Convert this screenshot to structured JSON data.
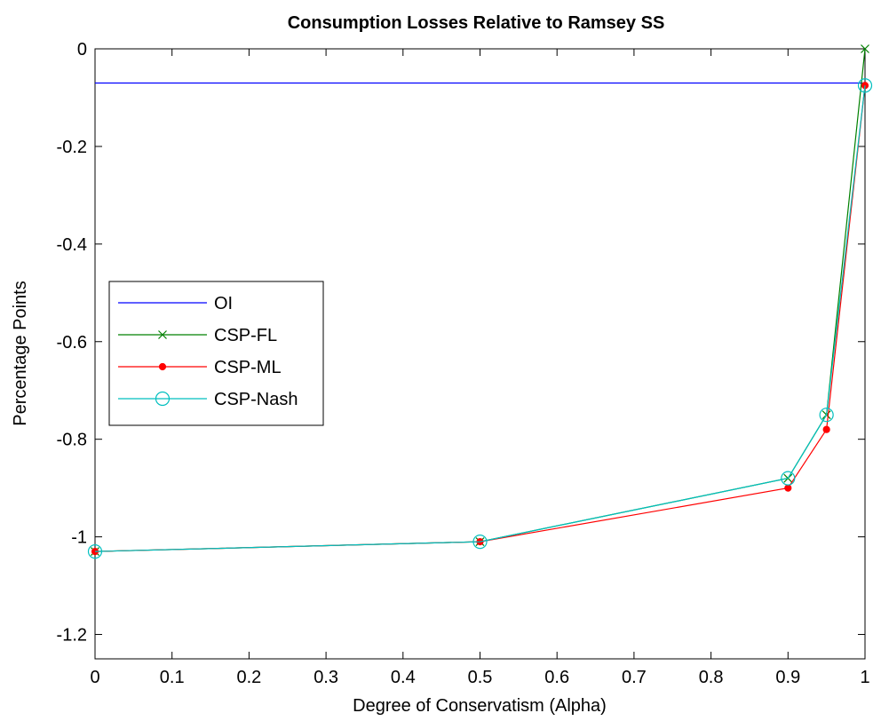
{
  "chart_data": {
    "type": "line",
    "title": "Consumption Losses Relative to Ramsey SS",
    "xlabel": "Degree of Conservatism (Alpha)",
    "ylabel": "Percentage Points",
    "xlim": [
      0,
      1
    ],
    "ylim": [
      -1.25,
      0
    ],
    "xticks": [
      0,
      0.1,
      0.2,
      0.3,
      0.4,
      0.5,
      0.6,
      0.7,
      0.8,
      0.9,
      1
    ],
    "xtick_labels": [
      "0",
      "0.1",
      "0.2",
      "0.3",
      "0.4",
      "0.5",
      "0.6",
      "0.7",
      "0.8",
      "0.9",
      "1"
    ],
    "yticks": [
      0,
      -0.2,
      -0.4,
      -0.6,
      -0.8,
      -1,
      -1.2
    ],
    "ytick_labels": [
      "0",
      "-0.2",
      "-0.4",
      "-0.6",
      "-0.8",
      "-1",
      "-1.2"
    ],
    "grid": false,
    "legend_position": "left",
    "series": [
      {
        "name": "OI",
        "color": "#0000ff",
        "marker": "none",
        "x": [
          0,
          1
        ],
        "y": [
          -0.07,
          -0.07
        ]
      },
      {
        "name": "CSP-FL",
        "color": "#008000",
        "marker": "x",
        "x": [
          0,
          0.5,
          0.9,
          0.95,
          1
        ],
        "y": [
          -1.03,
          -1.01,
          -0.88,
          -0.75,
          0.0
        ]
      },
      {
        "name": "CSP-ML",
        "color": "#ff0000",
        "marker": "dot",
        "x": [
          0,
          0.5,
          0.9,
          0.95,
          1
        ],
        "y": [
          -1.03,
          -1.01,
          -0.9,
          -0.78,
          -0.075
        ]
      },
      {
        "name": "CSP-Nash",
        "color": "#00bfbf",
        "marker": "circle",
        "x": [
          0,
          0.5,
          0.9,
          0.95,
          1
        ],
        "y": [
          -1.03,
          -1.01,
          -0.88,
          -0.75,
          -0.075
        ]
      }
    ]
  }
}
